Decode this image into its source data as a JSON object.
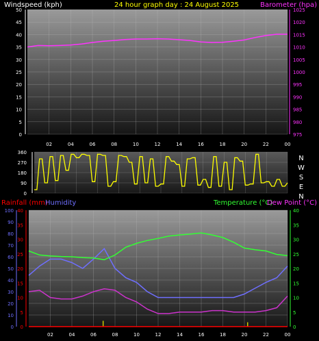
{
  "colors": {
    "background": "#000000",
    "title": "#ffff00",
    "windspeed_axis": "#ffffff",
    "barometer": "#ff33ff",
    "wind_direction": "#ffff00",
    "rainfall": "#ff0000",
    "humidity": "#6f6fff",
    "temperature": "#33ff33",
    "dew_point": "#cc33cc",
    "rain_bars": "#cccc00"
  },
  "chart_data": [
    {
      "type": "line",
      "title": "24 hour graph day : 24 August 2025",
      "ylabel_left": "Windspeed (kph)",
      "ylabel_right": "Barometer (hpa)",
      "ylim_left": [
        0,
        50
      ],
      "ylim_right": [
        975,
        1020
      ],
      "yticks_left": [
        "0",
        "5",
        "10",
        "15",
        "20",
        "25",
        "30",
        "35",
        "40",
        "45",
        "50"
      ],
      "yticks_right": [
        "975",
        "980",
        "985",
        "990",
        "995",
        "1000",
        "1005",
        "1010",
        "1015",
        "1020",
        "1025"
      ],
      "xticks": [
        "02",
        "04",
        "06",
        "08",
        "10",
        "12",
        "14",
        "16",
        "18",
        "20",
        "22",
        "00"
      ],
      "grid": true,
      "series": [
        {
          "name": "Barometer (hpa)",
          "x": [
            0,
            1,
            2,
            3,
            4,
            5,
            6,
            7,
            8,
            9,
            10,
            11,
            12,
            13,
            14,
            15,
            16,
            17,
            18,
            19,
            20,
            21,
            22,
            23,
            24
          ],
          "values": [
            1010.0,
            1010.6,
            1010.5,
            1010.6,
            1010.8,
            1011.2,
            1011.8,
            1012.3,
            1012.6,
            1013.0,
            1013.2,
            1013.2,
            1013.3,
            1013.2,
            1012.9,
            1012.6,
            1012.0,
            1011.8,
            1011.9,
            1012.3,
            1012.8,
            1013.8,
            1014.6,
            1015.1,
            1015.1
          ]
        }
      ]
    },
    {
      "type": "line",
      "ylabel_right": [
        "N",
        "W",
        "S",
        "E",
        "N"
      ],
      "ylim": [
        0,
        360
      ],
      "yticks": [
        "0",
        "90",
        "180",
        "270",
        "360"
      ],
      "series": [
        {
          "name": "Wind direction",
          "x": [
            0,
            0.5,
            1,
            1.5,
            2,
            2.5,
            3,
            3.5,
            4,
            4.5,
            5,
            5.5,
            6,
            6.5,
            7,
            7.5,
            8,
            8.5,
            9,
            9.5,
            10,
            10.5,
            11,
            11.5,
            12,
            12.5,
            13,
            13.5,
            14,
            14.5,
            15,
            15.5,
            16,
            16.5,
            17,
            17.5,
            18,
            18.5,
            19,
            19.5,
            20,
            20.5,
            21,
            21.5,
            22,
            22.5,
            23,
            23.5,
            24
          ],
          "values": [
            30,
            300,
            90,
            320,
            110,
            330,
            200,
            340,
            310,
            340,
            330,
            100,
            340,
            330,
            60,
            100,
            330,
            320,
            270,
            80,
            320,
            90,
            300,
            60,
            80,
            320,
            280,
            250,
            60,
            300,
            310,
            70,
            120,
            50,
            320,
            60,
            270,
            30,
            310,
            280,
            70,
            80,
            340,
            90,
            100,
            60,
            120,
            60,
            90
          ]
        }
      ]
    },
    {
      "type": "line",
      "ylabel_left": [
        "Rainfall (mm)",
        "Humidity"
      ],
      "ylabel_right": [
        "Temperature (°C)",
        "Dew Point (°C)"
      ],
      "ylim_humidity": [
        0,
        100
      ],
      "ylim_rainfall": [
        0,
        40
      ],
      "ylim_temperature": [
        0,
        40
      ],
      "yticks_humidity": [
        "0",
        "10",
        "20",
        "30",
        "40",
        "50",
        "60",
        "70",
        "80",
        "90",
        "100"
      ],
      "yticks_rainfall": [
        "0",
        "5",
        "10",
        "15",
        "20",
        "25",
        "30",
        "35",
        "40"
      ],
      "yticks_temperature": [
        "0",
        "5",
        "10",
        "15",
        "20",
        "25",
        "30",
        "35",
        "40"
      ],
      "xticks": [
        "02",
        "04",
        "06",
        "08",
        "10",
        "12",
        "14",
        "16",
        "18",
        "20",
        "22",
        "00"
      ],
      "series": [
        {
          "name": "Temperature (°C)",
          "x": [
            0,
            1,
            2,
            3,
            4,
            5,
            6,
            7,
            8,
            9,
            10,
            11,
            12,
            13,
            14,
            15,
            16,
            17,
            18,
            19,
            20,
            21,
            22,
            23,
            24
          ],
          "values": [
            26.0,
            24.6,
            24.3,
            24.1,
            24.0,
            23.7,
            23.6,
            23.0,
            24.6,
            27.3,
            28.6,
            29.6,
            30.3,
            31.1,
            31.5,
            31.8,
            32.2,
            31.5,
            30.6,
            29.0,
            27.0,
            26.4,
            26.0,
            24.8,
            24.4
          ]
        },
        {
          "name": "Humidity",
          "x": [
            0,
            1,
            2,
            3,
            4,
            5,
            6,
            7,
            8,
            9,
            10,
            11,
            12,
            13,
            14,
            15,
            16,
            17,
            18,
            19,
            20,
            21,
            22,
            23,
            24
          ],
          "values": [
            44,
            52,
            58,
            58,
            55,
            50,
            58,
            67,
            50,
            42,
            38,
            30,
            25,
            25,
            25,
            25,
            25,
            25,
            25,
            25,
            28,
            33,
            38,
            42,
            52
          ]
        },
        {
          "name": "Dew Point (°C)",
          "x": [
            0,
            1,
            2,
            3,
            4,
            5,
            6,
            7,
            8,
            9,
            10,
            11,
            12,
            13,
            14,
            15,
            16,
            17,
            18,
            19,
            20,
            21,
            22,
            23,
            24
          ],
          "values": [
            12.0,
            12.5,
            10.0,
            9.5,
            9.5,
            10.5,
            12.0,
            13.0,
            12.5,
            10.0,
            8.5,
            6.0,
            4.5,
            4.5,
            5.0,
            5.0,
            5.0,
            5.5,
            5.5,
            5.0,
            5.0,
            5.0,
            5.5,
            6.5,
            10.5
          ]
        },
        {
          "name": "Rainfall (mm)",
          "x": [
            0,
            24
          ],
          "values": [
            0,
            0
          ]
        }
      ],
      "bars": {
        "x": [
          6.9,
          20.3
        ],
        "values": [
          2.0,
          1.5
        ]
      }
    }
  ]
}
